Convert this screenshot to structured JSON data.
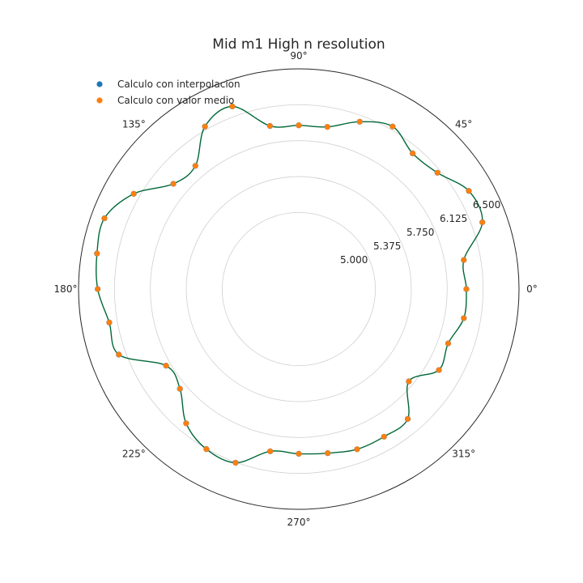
{
  "chart_data": {
    "type": "scatter",
    "projection": "polar",
    "title": "Mid m1 High n resolution",
    "angle_ticks": [
      "0°",
      "45°",
      "90°",
      "135°",
      "180°",
      "225°",
      "270°",
      "315°"
    ],
    "radial_ticks": [
      "5.000",
      "5.375",
      "5.750",
      "6.125",
      "6.500"
    ],
    "rlim": [
      4.2,
      6.5
    ],
    "grid": true,
    "legend_position": "top-left",
    "x": [
      0,
      10,
      20,
      30,
      40,
      50,
      60,
      70,
      80,
      90,
      100,
      110,
      120,
      130,
      140,
      150,
      160,
      170,
      180,
      190,
      200,
      210,
      220,
      230,
      240,
      250,
      260,
      270,
      280,
      290,
      300,
      310,
      320,
      330,
      340,
      350
    ],
    "series": [
      {
        "name": "Calculo con interpolacion",
        "color": "#1f77b4",
        "values": [
          5.95,
          5.95,
          6.24,
          6.25,
          6.09,
          6.05,
          6.16,
          6.06,
          5.92,
          5.91,
          5.93,
          6.23,
          6.16,
          5.88,
          5.91,
          6.19,
          6.36,
          6.34,
          6.3,
          6.21,
          6.2,
          5.8,
          5.82,
          6.03,
          6.13,
          6.13,
          5.92,
          5.92,
          5.94,
          5.98,
          5.98,
          5.97,
          5.7,
          5.89,
          5.86,
          5.95
        ],
        "marker": "o"
      },
      {
        "name": "Calculo con valor medio",
        "color": "#ff7f0e",
        "values": [
          5.95,
          5.95,
          6.24,
          6.25,
          6.09,
          6.05,
          6.16,
          6.06,
          5.92,
          5.91,
          5.93,
          6.23,
          6.16,
          5.88,
          5.91,
          6.19,
          6.36,
          6.34,
          6.3,
          6.21,
          6.2,
          5.8,
          5.82,
          6.03,
          6.13,
          6.13,
          5.92,
          5.92,
          5.94,
          5.98,
          5.98,
          5.97,
          5.7,
          5.89,
          5.86,
          5.95
        ],
        "marker": "o"
      }
    ],
    "curve_color": "#006837"
  }
}
